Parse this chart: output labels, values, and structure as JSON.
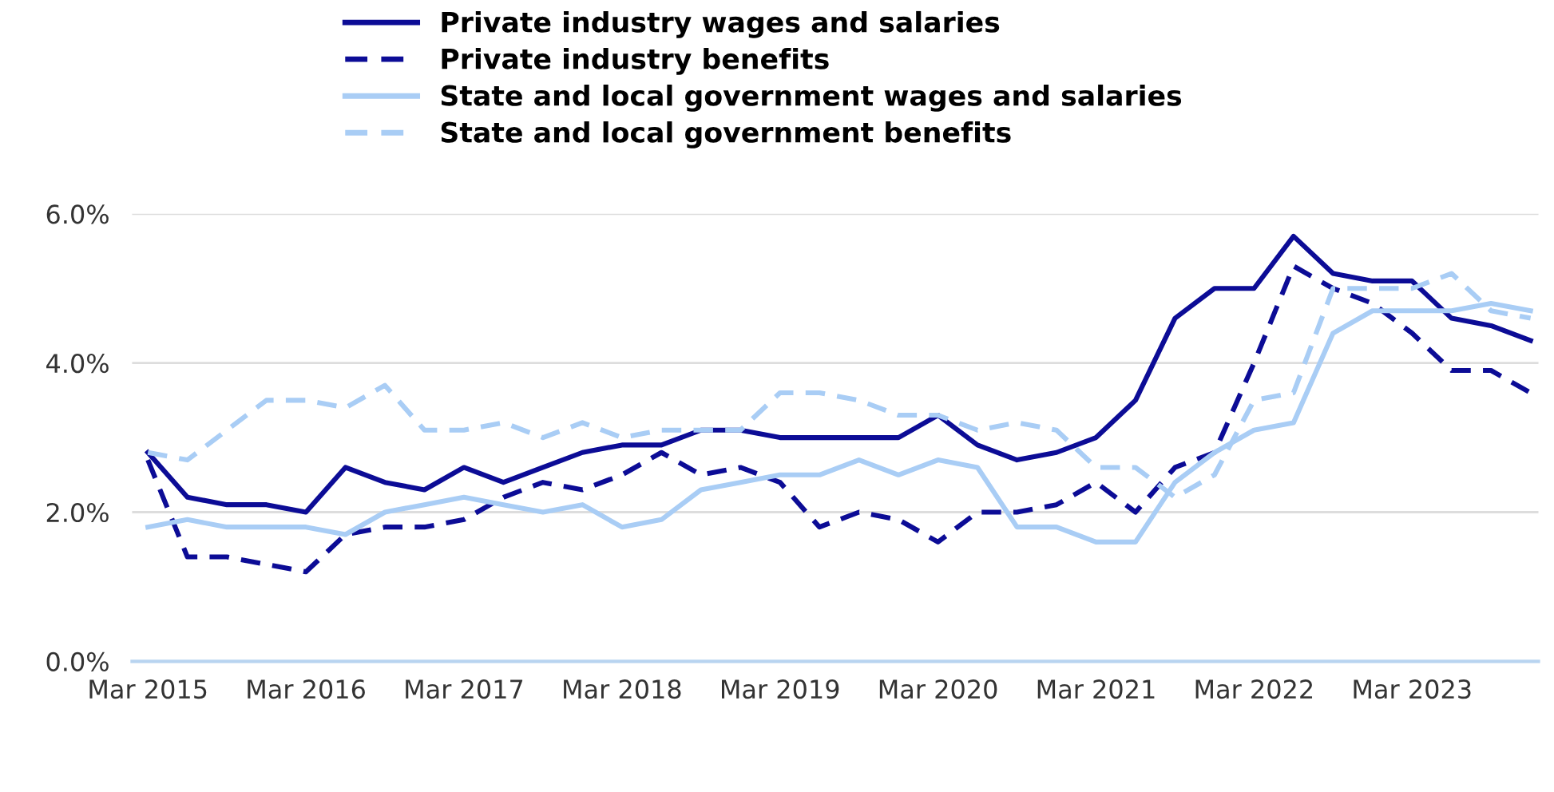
{
  "chart_data": {
    "type": "line",
    "categories": [
      "Mar 2015",
      null,
      null,
      null,
      "Mar 2016",
      null,
      null,
      null,
      "Mar 2017",
      null,
      null,
      null,
      "Mar 2018",
      null,
      null,
      null,
      "Mar 2019",
      null,
      null,
      null,
      "Mar 2020",
      null,
      null,
      null,
      "Mar 2021",
      null,
      null,
      null,
      "Mar 2022",
      null,
      null,
      null,
      "Mar 2023",
      null,
      null,
      null
    ],
    "series": [
      {
        "name": "Private industry wages and salaries",
        "color": "#0c0c96",
        "line_style": "solid",
        "values": [
          2.8,
          2.2,
          2.1,
          2.1,
          2.0,
          2.6,
          2.4,
          2.3,
          2.6,
          2.4,
          2.6,
          2.8,
          2.9,
          2.9,
          3.1,
          3.1,
          3.0,
          3.0,
          3.0,
          3.0,
          3.3,
          2.9,
          2.7,
          2.8,
          3.0,
          3.5,
          4.6,
          5.0,
          5.0,
          5.7,
          5.2,
          5.1,
          5.1,
          4.6,
          4.5,
          4.3
        ]
      },
      {
        "name": "Private industry benefits",
        "color": "#0c0c96",
        "line_style": "dashed",
        "values": [
          2.7,
          1.4,
          1.4,
          1.3,
          1.2,
          1.7,
          1.8,
          1.8,
          1.9,
          2.2,
          2.4,
          2.3,
          2.5,
          2.8,
          2.5,
          2.6,
          2.4,
          1.8,
          2.0,
          1.9,
          1.6,
          2.0,
          2.0,
          2.1,
          2.4,
          2.0,
          2.6,
          2.8,
          4.0,
          5.3,
          5.0,
          4.8,
          4.4,
          3.9,
          3.9,
          3.6
        ]
      },
      {
        "name": "State and local government wages and salaries",
        "color": "#a9cdf5",
        "line_style": "solid",
        "values": [
          1.8,
          1.9,
          1.8,
          1.8,
          1.8,
          1.7,
          2.0,
          2.1,
          2.2,
          2.1,
          2.0,
          2.1,
          1.8,
          1.9,
          2.3,
          2.4,
          2.5,
          2.5,
          2.7,
          2.5,
          2.7,
          2.6,
          1.8,
          1.8,
          1.6,
          1.6,
          2.4,
          2.8,
          3.1,
          3.2,
          4.4,
          4.7,
          4.7,
          4.7,
          4.8,
          4.7
        ]
      },
      {
        "name": "State and local government benefits",
        "color": "#a9cdf5",
        "line_style": "dashed",
        "values": [
          2.8,
          2.7,
          3.1,
          3.5,
          3.5,
          3.4,
          3.7,
          3.1,
          3.1,
          3.2,
          3.0,
          3.2,
          3.0,
          3.1,
          3.1,
          3.1,
          3.6,
          3.6,
          3.5,
          3.3,
          3.3,
          3.1,
          3.2,
          3.1,
          2.6,
          2.6,
          2.2,
          2.5,
          3.5,
          3.6,
          5.0,
          5.0,
          5.0,
          5.2,
          4.7,
          4.6
        ]
      }
    ],
    "ylim": [
      0,
      6
    ],
    "yticks": [
      {
        "value": 0,
        "label": "0.0%"
      },
      {
        "value": 2,
        "label": "2.0%"
      },
      {
        "value": 4,
        "label": "4.0%"
      },
      {
        "value": 6,
        "label": "6.0%"
      }
    ],
    "grid": "y",
    "legend": "top",
    "marker": "none"
  }
}
